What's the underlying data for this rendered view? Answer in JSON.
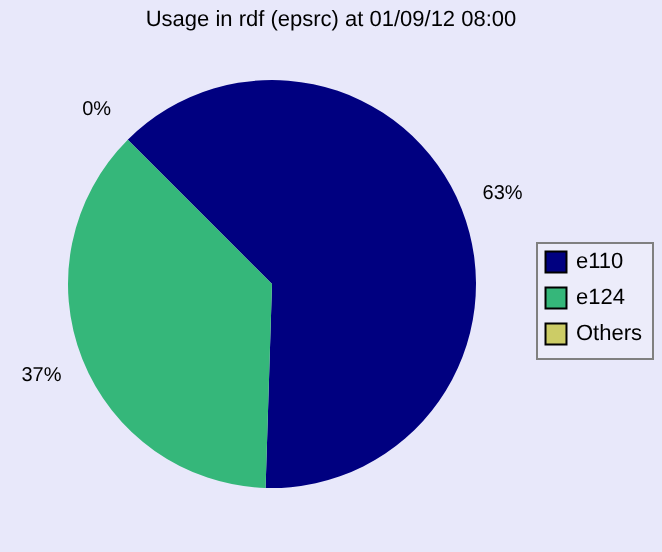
{
  "chart_data": {
    "type": "pie",
    "title": "Usage in rdf (epsrc) at 01/09/12 08:00",
    "categories": [
      "e110",
      "e124",
      "Others"
    ],
    "values": [
      63,
      37,
      0
    ],
    "colors": [
      "#000080",
      "#35b77a",
      "#cccc66"
    ],
    "value_labels": [
      "63%",
      "37%",
      "0%"
    ],
    "legend": "right"
  }
}
